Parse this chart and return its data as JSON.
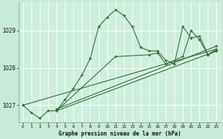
{
  "title": "Graphe pression niveau de la mer (hPa)",
  "bg_color": "#c8ead8",
  "plot_bg": "#ceeede",
  "grid_color": "#ffffff",
  "line_color": "#2d6a2d",
  "xlim": [
    -0.5,
    23.5
  ],
  "ylim": [
    1026.55,
    1029.75
  ],
  "yticks": [
    1027,
    1028,
    1029
  ],
  "xtick_labels": [
    "0",
    "1",
    "2",
    "3",
    "4",
    "5",
    "6",
    "7",
    "8",
    "9",
    "10",
    "11",
    "12",
    "13",
    "14",
    "15",
    "16",
    "17",
    "18",
    "19",
    "20",
    "21",
    "22",
    "23"
  ],
  "xticks": [
    0,
    1,
    2,
    3,
    4,
    5,
    6,
    7,
    8,
    9,
    10,
    11,
    12,
    13,
    14,
    15,
    16,
    17,
    18,
    19,
    20,
    21,
    22,
    23
  ],
  "series_main": {
    "x": [
      0,
      1,
      2,
      3,
      4,
      5,
      6,
      7,
      8,
      9,
      10,
      11,
      12,
      13,
      14,
      15,
      16,
      17,
      18,
      19,
      20,
      21,
      22,
      23
    ],
    "y": [
      1027.0,
      1026.8,
      1026.65,
      1026.85,
      1026.85,
      1027.15,
      1027.45,
      1027.8,
      1028.25,
      1029.1,
      1029.35,
      1029.55,
      1029.4,
      1029.1,
      1028.55,
      1028.45,
      1028.45,
      1028.2,
      1028.1,
      1029.1,
      1028.8,
      1028.85,
      1028.35,
      1028.5
    ]
  },
  "series_diag1": {
    "x": [
      4,
      11,
      15,
      16,
      17,
      19,
      20,
      21,
      22,
      23
    ],
    "y": [
      1026.85,
      1028.3,
      1028.35,
      1028.4,
      1028.1,
      1028.3,
      1029.0,
      1028.75,
      1028.35,
      1028.45
    ]
  },
  "series_flat1": {
    "x": [
      4,
      23
    ],
    "y": [
      1026.85,
      1028.45
    ]
  },
  "series_flat2": {
    "x": [
      4,
      23
    ],
    "y": [
      1026.9,
      1028.58
    ]
  },
  "series_flat3": {
    "x": [
      0,
      23
    ],
    "y": [
      1027.0,
      1028.5
    ]
  }
}
